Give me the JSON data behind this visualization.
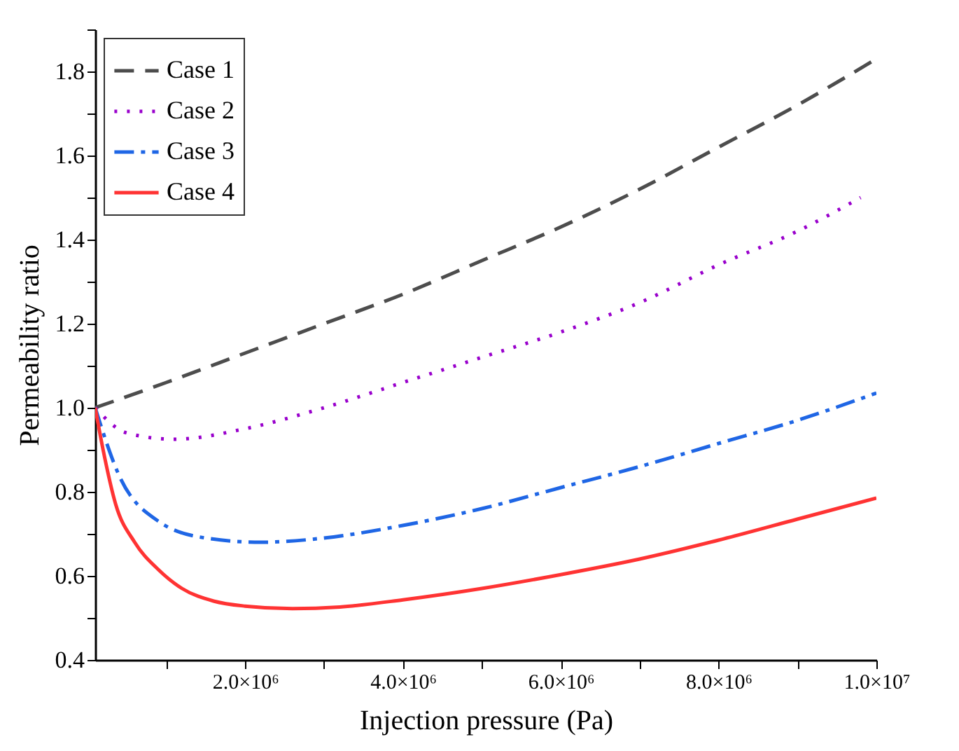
{
  "chart_data": {
    "type": "line",
    "xlabel": "Injection pressure (Pa)",
    "ylabel": "Permeability ratio",
    "legend": "top left",
    "grid": false,
    "xlim": [
      100000,
      10000000
    ],
    "ylim": [
      0.4,
      1.9
    ],
    "xticks": [
      {
        "value": 1000000,
        "label": null
      },
      {
        "value": 2000000,
        "label": "2.0×10⁶"
      },
      {
        "value": 3000000,
        "label": null
      },
      {
        "value": 4000000,
        "label": "4.0×10⁶"
      },
      {
        "value": 5000000,
        "label": null
      },
      {
        "value": 6000000,
        "label": "6.0×10⁶"
      },
      {
        "value": 7000000,
        "label": null
      },
      {
        "value": 8000000,
        "label": "8.0×10⁶"
      },
      {
        "value": 9000000,
        "label": null
      },
      {
        "value": 10000000,
        "label": "1.0×10⁷"
      }
    ],
    "yticks": [
      0.4,
      {
        "value": 0.5,
        "label": null
      },
      0.6,
      {
        "value": 0.7,
        "label": null
      },
      0.8,
      {
        "value": 0.9,
        "label": null
      },
      {
        "value": 1,
        "label": "1.0"
      },
      {
        "value": 1.1,
        "label": null
      },
      1.2,
      {
        "value": 1.3,
        "label": null
      },
      1.4,
      {
        "value": 1.5,
        "label": null
      },
      1.6,
      {
        "value": 1.7,
        "label": null
      },
      1.8,
      {
        "value": 1.9,
        "label": null
      }
    ],
    "series": [
      {
        "name": "Case 1",
        "color": "#4d4d4d",
        "line_style": "dashed",
        "x": [
          100000,
          1000000,
          2000000,
          3000000,
          4000000,
          5000000,
          6000000,
          7000000,
          8000000,
          9000000,
          10000000
        ],
        "values": [
          1.0,
          1.06,
          1.13,
          1.2,
          1.27,
          1.35,
          1.43,
          1.52,
          1.62,
          1.72,
          1.83
        ]
      },
      {
        "name": "Case 2",
        "color": "#9900cc",
        "line_style": "dotted",
        "x": [
          100000,
          500000,
          1100000,
          2000000,
          3000000,
          4000000,
          5000000,
          6000000,
          7000000,
          8000000,
          9000000,
          9800000
        ],
        "values": [
          1.0,
          0.94,
          0.925,
          0.95,
          1.0,
          1.06,
          1.12,
          1.18,
          1.25,
          1.34,
          1.42,
          1.5
        ]
      },
      {
        "name": "Case 3",
        "color": "#1f66e5",
        "line_style": "dashdot",
        "x": [
          100000,
          400000,
          900000,
          1500000,
          2200000,
          3000000,
          4000000,
          5000000,
          6000000,
          7000000,
          8000000,
          9000000,
          10000000
        ],
        "values": [
          1.0,
          0.84,
          0.73,
          0.69,
          0.68,
          0.69,
          0.72,
          0.76,
          0.81,
          0.86,
          0.915,
          0.97,
          1.035
        ]
      },
      {
        "name": "Case 4",
        "color": "#ff3333",
        "line_style": "solid",
        "x": [
          100000,
          200000,
          360000,
          600000,
          900000,
          1200000,
          1600000,
          2000000,
          2600000,
          3200000,
          4000000,
          5000000,
          6000000,
          7000000,
          8000000,
          9000000,
          10000000
        ],
        "values": [
          1.0,
          0.9,
          0.77,
          0.68,
          0.615,
          0.57,
          0.54,
          0.528,
          0.522,
          0.526,
          0.543,
          0.57,
          0.603,
          0.64,
          0.685,
          0.735,
          0.785
        ]
      }
    ]
  }
}
